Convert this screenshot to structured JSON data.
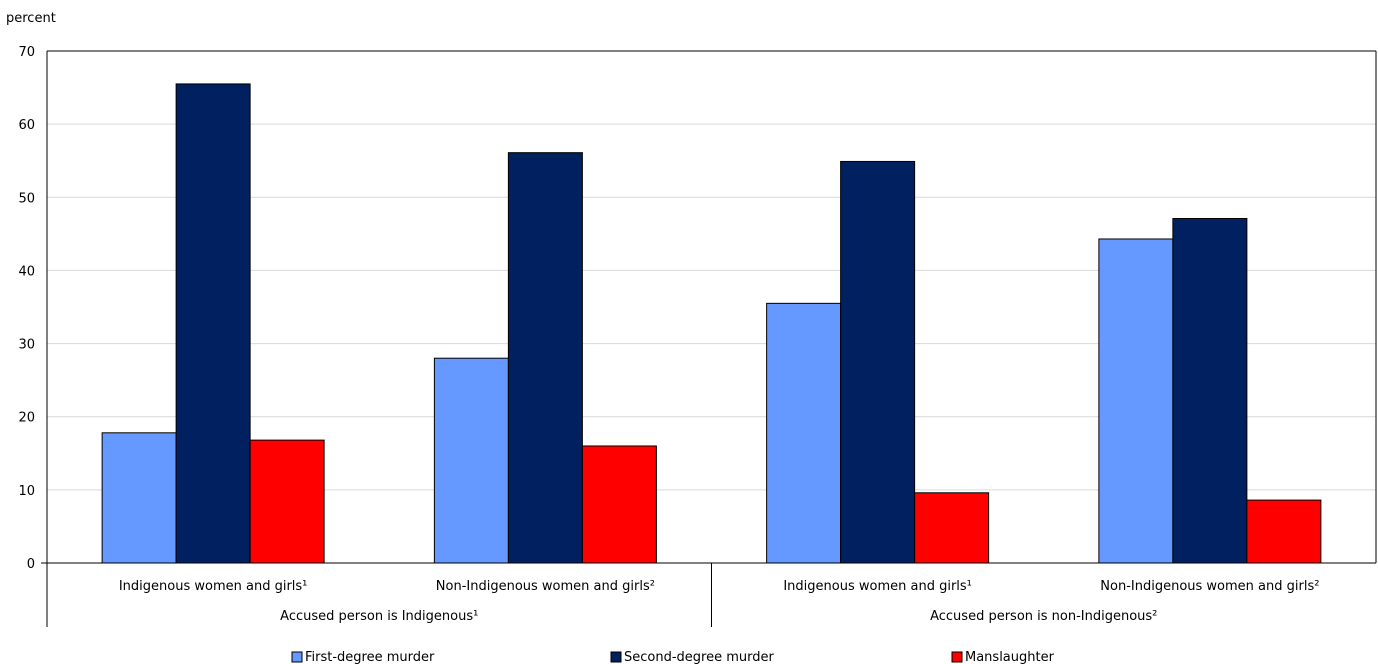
{
  "chart_data": {
    "type": "bar",
    "ylabel": "percent",
    "ylim": [
      0,
      70
    ],
    "yticks": [
      0,
      10,
      20,
      30,
      40,
      50,
      60,
      70
    ],
    "grid": true,
    "legend_position": "bottom",
    "groups": [
      {
        "label": "Accused person is Indigenous¹",
        "categories": [
          0,
          1
        ]
      },
      {
        "label": "Accused person is non-Indigenous²",
        "categories": [
          2,
          3
        ]
      }
    ],
    "categories": [
      "Indigenous women and girls¹",
      "Non-Indigenous women and girls²",
      "Indigenous women and girls¹",
      "Non-Indigenous women and girls²"
    ],
    "series": [
      {
        "name": "First-degree murder",
        "color": "#6699ff",
        "values": [
          17.8,
          28.0,
          35.5,
          44.3
        ]
      },
      {
        "name": "Second-degree murder",
        "color": "#002060",
        "values": [
          65.5,
          56.1,
          54.9,
          47.1
        ]
      },
      {
        "name": "Manslaughter",
        "color": "#ff0000",
        "values": [
          16.8,
          16.0,
          9.6,
          8.6
        ]
      }
    ]
  }
}
